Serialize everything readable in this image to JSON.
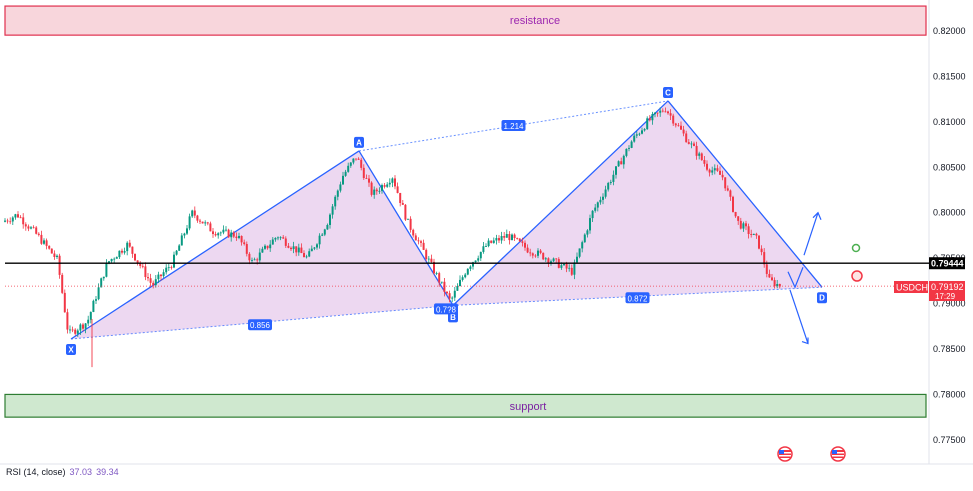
{
  "colors": {
    "resistance_fill": "#f8d6dc",
    "resistance_border": "#e0304e",
    "resistance_text": "#9c27b0",
    "support_fill": "#cfe8cf",
    "support_border": "#2e7d32",
    "support_text": "#7b1fa2",
    "pattern_line": "#2962ff",
    "pattern_fill": "#e1bee7",
    "up_candle": "#089981",
    "down_candle": "#f23645",
    "price_tag": "#f23645",
    "level_tag": "#000000"
  },
  "symbol_tag": "USDCHF",
  "current_price": "0.79192",
  "countdown": "17:29",
  "level_price": "0.79444",
  "rsi": {
    "label": "RSI (14, close)",
    "value1": "37.03",
    "value2": "39.34"
  },
  "chart_data": {
    "type": "candlestick",
    "ylim": [
      0.7725,
      0.8228
    ],
    "y_ticks": [
      "0.82000",
      "0.81500",
      "0.81000",
      "0.80500",
      "0.80000",
      "0.79500",
      "0.79000",
      "0.78500",
      "0.78000",
      "0.77500"
    ],
    "zones": [
      {
        "name": "resistance",
        "from": 0.8196,
        "to": 0.8228
      },
      {
        "name": "support",
        "from": 0.7775,
        "to": 0.78
      }
    ],
    "horizontal_level": 0.79444,
    "current_price": 0.79192,
    "pattern": {
      "points": [
        {
          "label": "X",
          "price": 0.7861
        },
        {
          "label": "A",
          "price": 0.8068
        },
        {
          "label": "B",
          "price": 0.7898
        },
        {
          "label": "C",
          "price": 0.8123
        },
        {
          "label": "D",
          "price": 0.7918
        }
      ],
      "ratios": [
        {
          "label": "1.214",
          "between": "A-C"
        },
        {
          "label": "0.856",
          "between": "X-B"
        },
        {
          "label": "0.7?8",
          "between": "B"
        },
        {
          "label": "0.872",
          "between": "B-D"
        }
      ]
    },
    "projection": {
      "up_target": 0.8,
      "down_target": 0.7856
    },
    "markers": [
      "target-up",
      "stop-loss"
    ]
  }
}
